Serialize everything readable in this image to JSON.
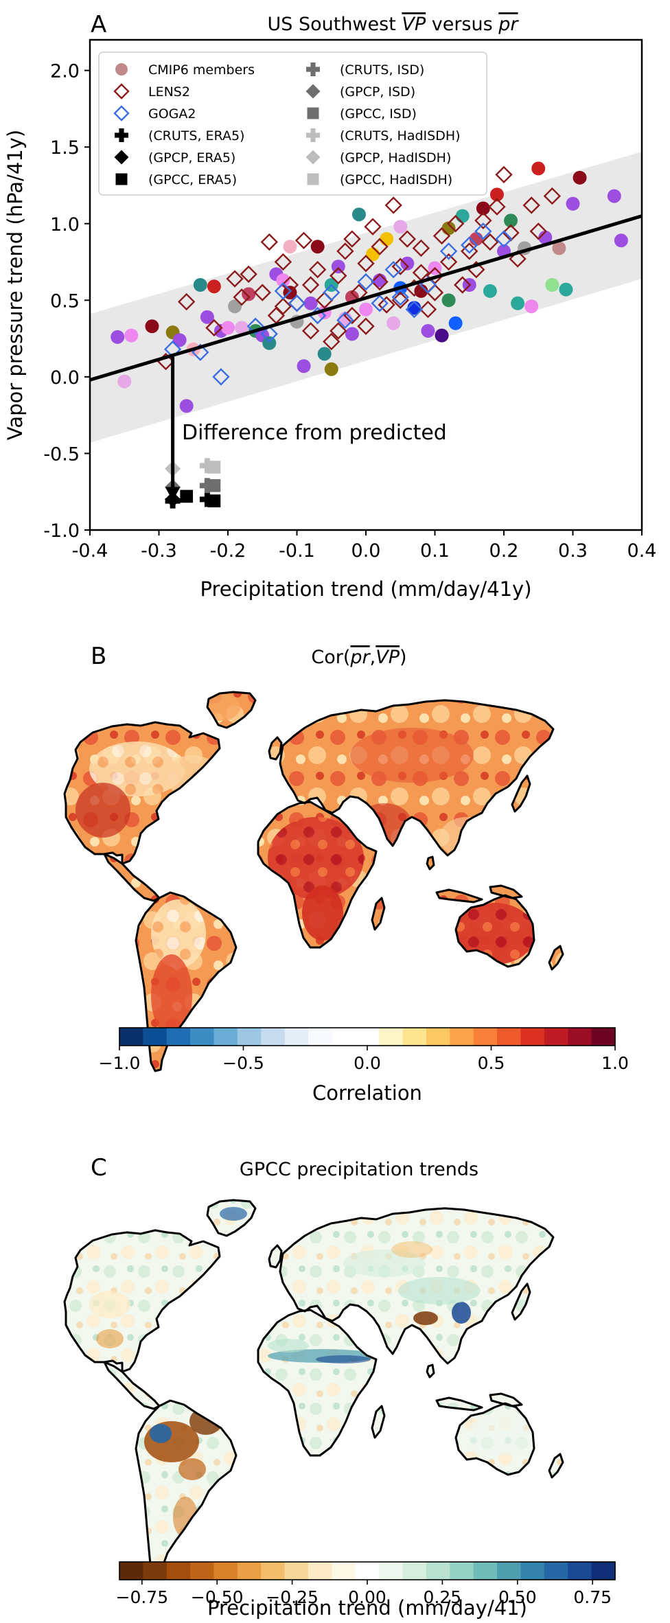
{
  "chart_data": [
    {
      "type": "scatter",
      "panel_letter": "A",
      "title_prefix": "US Southwest ",
      "title_vp": "VP",
      "title_mid": " versus ",
      "title_pr": "pr",
      "xlabel": "Precipitation trend (mm/day/41y)",
      "ylabel": "Vapor pressure trend (hPa/41y)",
      "xlim": [
        -0.4,
        0.4
      ],
      "ylim": [
        -1.0,
        2.2
      ],
      "xticks": [
        "-0.4",
        "-0.3",
        "-0.2",
        "-0.1",
        "0.0",
        "0.1",
        "0.2",
        "0.3",
        "0.4"
      ],
      "yticks": [
        "-1.0",
        "-0.5",
        "0.0",
        "0.5",
        "1.0",
        "1.5",
        "2.0"
      ],
      "legend_position": "top",
      "legend": [
        {
          "label": "CMIP6 members",
          "marker": "circle",
          "color": "#c08a8a"
        },
        {
          "label": "LENS2",
          "marker": "open-diamond",
          "color": "#8b1a1a"
        },
        {
          "label": "GOGA2",
          "marker": "open-diamond",
          "color": "#3b6fe0"
        },
        {
          "label": "(CRUTS, ERA5)",
          "marker": "plus",
          "color": "#000000"
        },
        {
          "label": "(GPCP, ERA5)",
          "marker": "diamond",
          "color": "#000000"
        },
        {
          "label": "(GPCC, ERA5)",
          "marker": "square",
          "color": "#000000"
        },
        {
          "label": "(CRUTS, ISD)",
          "marker": "plus",
          "color": "#6e6e6e"
        },
        {
          "label": "(GPCP, ISD)",
          "marker": "diamond",
          "color": "#6e6e6e"
        },
        {
          "label": "(GPCC, ISD)",
          "marker": "square",
          "color": "#6e6e6e"
        },
        {
          "label": "(CRUTS, HadISDH)",
          "marker": "plus",
          "color": "#bdbdbd"
        },
        {
          "label": "(GPCP, HadISDH)",
          "marker": "diamond",
          "color": "#bdbdbd"
        },
        {
          "label": "(GPCC, HadISDH)",
          "marker": "square",
          "color": "#bdbdbd"
        }
      ],
      "regression": {
        "x": [
          -0.4,
          0.4
        ],
        "y": [
          -0.02,
          1.05
        ]
      },
      "band": {
        "x": [
          -0.4,
          0.4
        ],
        "lower": [
          -0.43,
          0.64
        ],
        "upper": [
          0.41,
          1.47
        ]
      },
      "annotation": {
        "text": "Difference from predicted",
        "arrow_x": -0.28,
        "arrow_from": 0.13,
        "arrow_to": -0.8
      },
      "cmip6": [
        {
          "x": -0.36,
          "y": 0.26,
          "c": "#9b4ee0"
        },
        {
          "x": -0.35,
          "y": -0.03,
          "c": "#e6a8e6"
        },
        {
          "x": -0.34,
          "y": 0.27,
          "c": "#ee88ee"
        },
        {
          "x": -0.31,
          "y": 0.33,
          "c": "#8b0a1a"
        },
        {
          "x": -0.28,
          "y": 0.29,
          "c": "#8b7a10"
        },
        {
          "x": -0.27,
          "y": 0.24,
          "c": "#9b4ee0"
        },
        {
          "x": -0.26,
          "y": -0.19,
          "c": "#9b4ee0"
        },
        {
          "x": -0.25,
          "y": 0.18,
          "c": "#f2b0c0"
        },
        {
          "x": -0.24,
          "y": 0.6,
          "c": "#2a8a8a"
        },
        {
          "x": -0.23,
          "y": 0.39,
          "c": "#9b4ee0"
        },
        {
          "x": -0.22,
          "y": 0.59,
          "c": "#cc2020"
        },
        {
          "x": -0.21,
          "y": 0.3,
          "c": "#9b4ee0"
        },
        {
          "x": -0.2,
          "y": 0.32,
          "c": "#ee88ee"
        },
        {
          "x": -0.19,
          "y": 0.46,
          "c": "#a0a0a0"
        },
        {
          "x": -0.18,
          "y": 0.32,
          "c": "#e6a8e6"
        },
        {
          "x": -0.17,
          "y": 0.54,
          "c": "#c04060"
        },
        {
          "x": -0.16,
          "y": 0.3,
          "c": "#2e8b57"
        },
        {
          "x": -0.15,
          "y": 0.27,
          "c": "#9b4ee0"
        },
        {
          "x": -0.14,
          "y": 0.22,
          "c": "#2a8a8a"
        },
        {
          "x": -0.13,
          "y": 0.67,
          "c": "#9b4ee0"
        },
        {
          "x": -0.12,
          "y": 0.63,
          "c": "#ee88ee"
        },
        {
          "x": -0.11,
          "y": 0.55,
          "c": "#8b0a1a"
        },
        {
          "x": -0.1,
          "y": 0.36,
          "c": "#a0a0a0"
        },
        {
          "x": -0.09,
          "y": 0.07,
          "c": "#9b4ee0"
        },
        {
          "x": -0.08,
          "y": 0.48,
          "c": "#9b4ee0"
        },
        {
          "x": -0.07,
          "y": 0.85,
          "c": "#8b0a1a"
        },
        {
          "x": -0.06,
          "y": 0.42,
          "c": "#ee88ee"
        },
        {
          "x": -0.05,
          "y": 0.6,
          "c": "#2ca89a"
        },
        {
          "x": -0.05,
          "y": 0.05,
          "c": "#8b7a10"
        },
        {
          "x": -0.04,
          "y": 0.72,
          "c": "#9b4ee0"
        },
        {
          "x": -0.03,
          "y": 0.38,
          "c": "#e6a8e6"
        },
        {
          "x": -0.02,
          "y": 0.52,
          "c": "#c04060"
        },
        {
          "x": -0.01,
          "y": 1.06,
          "c": "#2a8a8a"
        },
        {
          "x": 0.0,
          "y": 0.44,
          "c": "#ee88ee"
        },
        {
          "x": 0.01,
          "y": 0.8,
          "c": "#f2c000"
        },
        {
          "x": 0.02,
          "y": 0.63,
          "c": "#9b4ee0"
        },
        {
          "x": 0.03,
          "y": 0.9,
          "c": "#f2c000"
        },
        {
          "x": 0.04,
          "y": 0.35,
          "c": "#e6a8e6"
        },
        {
          "x": 0.05,
          "y": 0.58,
          "c": "#1060ff"
        },
        {
          "x": 0.06,
          "y": 0.74,
          "c": "#9b4ee0"
        },
        {
          "x": 0.07,
          "y": 0.45,
          "c": "#1030e0"
        },
        {
          "x": 0.08,
          "y": 0.56,
          "c": "#8b0a1a"
        },
        {
          "x": 0.09,
          "y": 0.3,
          "c": "#9b4ee0"
        },
        {
          "x": 0.1,
          "y": 0.71,
          "c": "#ee88ee"
        },
        {
          "x": 0.11,
          "y": 0.27,
          "c": "#4a0a8a"
        },
        {
          "x": 0.12,
          "y": 0.97,
          "c": "#8b7a10"
        },
        {
          "x": 0.13,
          "y": 0.35,
          "c": "#1060ff"
        },
        {
          "x": 0.14,
          "y": 1.05,
          "c": "#2ca89a"
        },
        {
          "x": 0.15,
          "y": 0.6,
          "c": "#9b4ee0"
        },
        {
          "x": 0.16,
          "y": 0.9,
          "c": "#c04060"
        },
        {
          "x": 0.17,
          "y": 1.1,
          "c": "#8b0a1a"
        },
        {
          "x": 0.18,
          "y": 0.56,
          "c": "#2ca89a"
        },
        {
          "x": 0.19,
          "y": 1.19,
          "c": "#cc2020"
        },
        {
          "x": 0.2,
          "y": 0.82,
          "c": "#9b4ee0"
        },
        {
          "x": 0.21,
          "y": 1.02,
          "c": "#2e8b57"
        },
        {
          "x": 0.22,
          "y": 0.48,
          "c": "#2ca89a"
        },
        {
          "x": 0.23,
          "y": 0.84,
          "c": "#a0a0a0"
        },
        {
          "x": 0.24,
          "y": 0.46,
          "c": "#ee88ee"
        },
        {
          "x": 0.25,
          "y": 1.36,
          "c": "#cc2020"
        },
        {
          "x": 0.26,
          "y": 0.91,
          "c": "#9b4ee0"
        },
        {
          "x": 0.27,
          "y": 0.6,
          "c": "#90e090"
        },
        {
          "x": 0.28,
          "y": 0.84,
          "c": "#c08a8a"
        },
        {
          "x": 0.29,
          "y": 0.57,
          "c": "#2ca89a"
        },
        {
          "x": 0.3,
          "y": 1.13,
          "c": "#9b4ee0"
        },
        {
          "x": 0.31,
          "y": 1.3,
          "c": "#8b0a1a"
        },
        {
          "x": 0.36,
          "y": 1.18,
          "c": "#9b4ee0"
        },
        {
          "x": 0.37,
          "y": 0.89,
          "c": "#9b4ee0"
        },
        {
          "x": -0.02,
          "y": 0.28,
          "c": "#9b4ee0"
        },
        {
          "x": 0.05,
          "y": 0.98,
          "c": "#e6a8e6"
        },
        {
          "x": -0.11,
          "y": 0.85,
          "c": "#f2b0c0"
        },
        {
          "x": 0.12,
          "y": 0.5,
          "c": "#2e8b57"
        },
        {
          "x": -0.06,
          "y": 0.15,
          "c": "#2a8a8a"
        }
      ],
      "lens2": [
        {
          "x": -0.29,
          "y": 0.1
        },
        {
          "x": -0.26,
          "y": 0.49
        },
        {
          "x": -0.22,
          "y": 0.32
        },
        {
          "x": -0.19,
          "y": 0.64
        },
        {
          "x": -0.18,
          "y": 0.52
        },
        {
          "x": -0.17,
          "y": 0.67
        },
        {
          "x": -0.15,
          "y": 0.55
        },
        {
          "x": -0.14,
          "y": 0.88
        },
        {
          "x": -0.13,
          "y": 0.4
        },
        {
          "x": -0.12,
          "y": 0.75
        },
        {
          "x": -0.11,
          "y": 0.6
        },
        {
          "x": -0.1,
          "y": 0.48
        },
        {
          "x": -0.09,
          "y": 0.89
        },
        {
          "x": -0.08,
          "y": 0.3
        },
        {
          "x": -0.07,
          "y": 0.7
        },
        {
          "x": -0.06,
          "y": 0.5
        },
        {
          "x": -0.05,
          "y": 0.23
        },
        {
          "x": -0.04,
          "y": 0.66
        },
        {
          "x": -0.03,
          "y": 0.82
        },
        {
          "x": -0.02,
          "y": 0.9
        },
        {
          "x": -0.01,
          "y": 0.55
        },
        {
          "x": 0.0,
          "y": 0.74
        },
        {
          "x": 0.01,
          "y": 0.98
        },
        {
          "x": 0.02,
          "y": 0.62
        },
        {
          "x": 0.03,
          "y": 0.47
        },
        {
          "x": 0.04,
          "y": 1.12
        },
        {
          "x": 0.05,
          "y": 0.72
        },
        {
          "x": 0.06,
          "y": 0.9
        },
        {
          "x": 0.07,
          "y": 0.58
        },
        {
          "x": 0.08,
          "y": 0.84
        },
        {
          "x": 0.09,
          "y": 0.44
        },
        {
          "x": 0.1,
          "y": 0.66
        },
        {
          "x": 0.11,
          "y": 0.92
        },
        {
          "x": 0.12,
          "y": 0.75
        },
        {
          "x": 0.13,
          "y": 1.0
        },
        {
          "x": 0.14,
          "y": 0.6
        },
        {
          "x": 0.15,
          "y": 0.82
        },
        {
          "x": 0.16,
          "y": 0.7
        },
        {
          "x": 0.17,
          "y": 1.02
        },
        {
          "x": 0.18,
          "y": 0.88
        },
        {
          "x": 0.19,
          "y": 1.11
        },
        {
          "x": 0.2,
          "y": 1.32
        },
        {
          "x": 0.21,
          "y": 0.94
        },
        {
          "x": 0.22,
          "y": 0.77
        },
        {
          "x": 0.24,
          "y": 1.12
        },
        {
          "x": 0.25,
          "y": 0.95
        },
        {
          "x": 0.27,
          "y": 1.18
        },
        {
          "x": -0.02,
          "y": 0.4
        },
        {
          "x": 0.05,
          "y": 0.5
        },
        {
          "x": -0.08,
          "y": 0.6
        },
        {
          "x": 0.1,
          "y": 0.55
        },
        {
          "x": -0.04,
          "y": 0.3
        },
        {
          "x": 0.0,
          "y": 0.33
        },
        {
          "x": 0.02,
          "y": 0.85
        },
        {
          "x": -0.12,
          "y": 0.46
        },
        {
          "x": 0.08,
          "y": 0.68
        }
      ],
      "goga2": [
        {
          "x": -0.28,
          "y": 0.18
        },
        {
          "x": -0.24,
          "y": 0.16
        },
        {
          "x": -0.21,
          "y": 0.0
        },
        {
          "x": -0.16,
          "y": 0.33
        },
        {
          "x": -0.12,
          "y": 0.56
        },
        {
          "x": -0.1,
          "y": 0.48
        },
        {
          "x": -0.07,
          "y": 0.4
        },
        {
          "x": -0.05,
          "y": 0.55
        },
        {
          "x": -0.03,
          "y": 0.37
        },
        {
          "x": 0.0,
          "y": 0.62
        },
        {
          "x": 0.02,
          "y": 0.48
        },
        {
          "x": 0.05,
          "y": 0.52
        },
        {
          "x": 0.07,
          "y": 0.44
        },
        {
          "x": 0.09,
          "y": 0.6
        },
        {
          "x": 0.12,
          "y": 0.82
        },
        {
          "x": 0.15,
          "y": 0.86
        },
        {
          "x": 0.17,
          "y": 0.95
        },
        {
          "x": 0.2,
          "y": 0.9
        },
        {
          "x": -0.14,
          "y": 0.28
        },
        {
          "x": 0.04,
          "y": 0.7
        }
      ],
      "observations": [
        {
          "x": -0.28,
          "y": -0.81,
          "marker": "plus",
          "color": "#000000"
        },
        {
          "x": -0.28,
          "y": -0.8,
          "marker": "diamond",
          "color": "#000000"
        },
        {
          "x": -0.26,
          "y": -0.78,
          "marker": "square",
          "color": "#000000"
        },
        {
          "x": -0.23,
          "y": -0.8,
          "marker": "plus",
          "color": "#000000"
        },
        {
          "x": -0.22,
          "y": -0.81,
          "marker": "square",
          "color": "#000000"
        },
        {
          "x": -0.28,
          "y": -0.72,
          "marker": "diamond",
          "color": "#6e6e6e"
        },
        {
          "x": -0.23,
          "y": -0.71,
          "marker": "plus",
          "color": "#6e6e6e"
        },
        {
          "x": -0.22,
          "y": -0.71,
          "marker": "square",
          "color": "#6e6e6e"
        },
        {
          "x": -0.28,
          "y": -0.6,
          "marker": "diamond",
          "color": "#bdbdbd"
        },
        {
          "x": -0.23,
          "y": -0.58,
          "marker": "plus",
          "color": "#bdbdbd"
        },
        {
          "x": -0.22,
          "y": -0.59,
          "marker": "square",
          "color": "#bdbdbd"
        }
      ]
    },
    {
      "type": "heatmap",
      "panel_letter": "B",
      "title_prefix": "Cor(",
      "title_pr": "pr",
      "title_sep": ",",
      "title_vp": "VP",
      "title_suffix": ")",
      "colorbar_label": "Correlation",
      "colorbar_range": [
        -1.0,
        1.0
      ],
      "colorbar_ticks": [
        "−1.0",
        "−0.5",
        "0.0",
        "0.5",
        "1.0"
      ],
      "colormap": [
        "#08306b",
        "#0b4f95",
        "#1f6eb4",
        "#3d8dc4",
        "#6aaed6",
        "#9cc7e4",
        "#c6dcee",
        "#e4eef8",
        "#f7fbff",
        "#ffffff",
        "#ffffff",
        "#fff6c6",
        "#fee491",
        "#fdc763",
        "#fca44b",
        "#f88039",
        "#ef5a2a",
        "#dc3121",
        "#bf1b23",
        "#9b0d25",
        "#6d0422"
      ]
    },
    {
      "type": "heatmap",
      "panel_letter": "C",
      "title": "GPCC precipitation trends",
      "colorbar_label": "Precipitation trend (mm/day/41)",
      "colorbar_range": [
        -0.825,
        0.825
      ],
      "colorbar_ticks": [
        "−0.75",
        "−0.50",
        "−0.25",
        "0.00",
        "0.25",
        "0.50",
        "0.75"
      ],
      "colormap": [
        "#5c2a08",
        "#7d3a0a",
        "#a24e0c",
        "#c06418",
        "#d9822a",
        "#ea9f45",
        "#f4bd6c",
        "#f9d79a",
        "#fcebc4",
        "#fdf7e6",
        "#ffffff",
        "#eef7ee",
        "#d6eedd",
        "#b8e2cf",
        "#94d1c2",
        "#6fbbb8",
        "#4d9fb0",
        "#3483ab",
        "#2566a4",
        "#1a4a94",
        "#0f2f78"
      ]
    }
  ]
}
